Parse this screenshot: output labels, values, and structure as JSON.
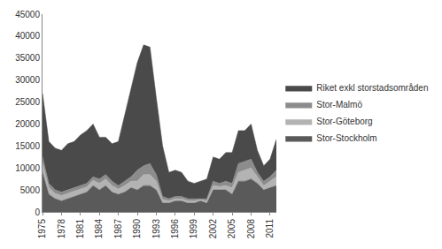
{
  "chart_data": {
    "type": "area",
    "stacked": true,
    "grid": false,
    "legend": "right",
    "x": [
      1975,
      1976,
      1977,
      1978,
      1979,
      1980,
      1981,
      1982,
      1983,
      1984,
      1985,
      1986,
      1987,
      1988,
      1989,
      1990,
      1991,
      1992,
      1993,
      1994,
      1995,
      1996,
      1997,
      1998,
      1999,
      2000,
      2001,
      2002,
      2003,
      2004,
      2005,
      2006,
      2007,
      2008,
      2009,
      2010,
      2011,
      2012
    ],
    "xlim": [
      1975,
      2012
    ],
    "xticks": [
      1975,
      1978,
      1981,
      1984,
      1987,
      1990,
      1993,
      1996,
      1999,
      2002,
      2005,
      2008,
      2011
    ],
    "ylim": [
      0,
      45000
    ],
    "yticks": [
      0,
      5000,
      10000,
      15000,
      20000,
      25000,
      30000,
      35000,
      40000,
      45000
    ],
    "series": [
      {
        "name": "Stor-Stockholm",
        "color": "#5a5a5a",
        "values": [
          9000,
          4000,
          3000,
          2500,
          3000,
          3500,
          4000,
          4500,
          6000,
          5000,
          6000,
          4500,
          4000,
          4500,
          5500,
          5000,
          6000,
          6000,
          5000,
          2000,
          2000,
          2500,
          2500,
          2000,
          2000,
          2500,
          2000,
          5000,
          5000,
          5000,
          4000,
          7000,
          7000,
          7500,
          6500,
          5000,
          5500,
          6000
        ]
      },
      {
        "name": "Stor-Göteborg",
        "color": "#b3b3b3",
        "values": [
          2000,
          1500,
          1200,
          1200,
          1200,
          1200,
          1200,
          1200,
          1200,
          1500,
          1500,
          1500,
          1200,
          1500,
          1500,
          2000,
          2500,
          2500,
          2000,
          800,
          500,
          500,
          500,
          500,
          500,
          300,
          500,
          1000,
          800,
          1000,
          1500,
          2000,
          2500,
          2500,
          1500,
          1000,
          1500,
          2000
        ]
      },
      {
        "name": "Stor-Malmö",
        "color": "#8c8c8c",
        "values": [
          1500,
          1000,
          800,
          800,
          800,
          800,
          800,
          800,
          800,
          1000,
          1000,
          1000,
          800,
          1000,
          1000,
          2500,
          2000,
          2500,
          1500,
          700,
          500,
          500,
          500,
          500,
          500,
          200,
          500,
          1000,
          700,
          1000,
          1000,
          2000,
          2000,
          2000,
          1000,
          1000,
          1000,
          1500
        ]
      },
      {
        "name": "Riket exkl storstadsområden",
        "color": "#4a4a4a",
        "values": [
          14500,
          9500,
          9500,
          9500,
          10500,
          10500,
          11500,
          12000,
          12000,
          9500,
          8500,
          8500,
          10000,
          15000,
          20000,
          24500,
          27500,
          26500,
          17500,
          11500,
          6000,
          6000,
          5500,
          4000,
          3500,
          4000,
          4500,
          5500,
          5500,
          6500,
          7000,
          7500,
          7000,
          8000,
          5000,
          3500,
          4000,
          7000
        ]
      }
    ]
  }
}
